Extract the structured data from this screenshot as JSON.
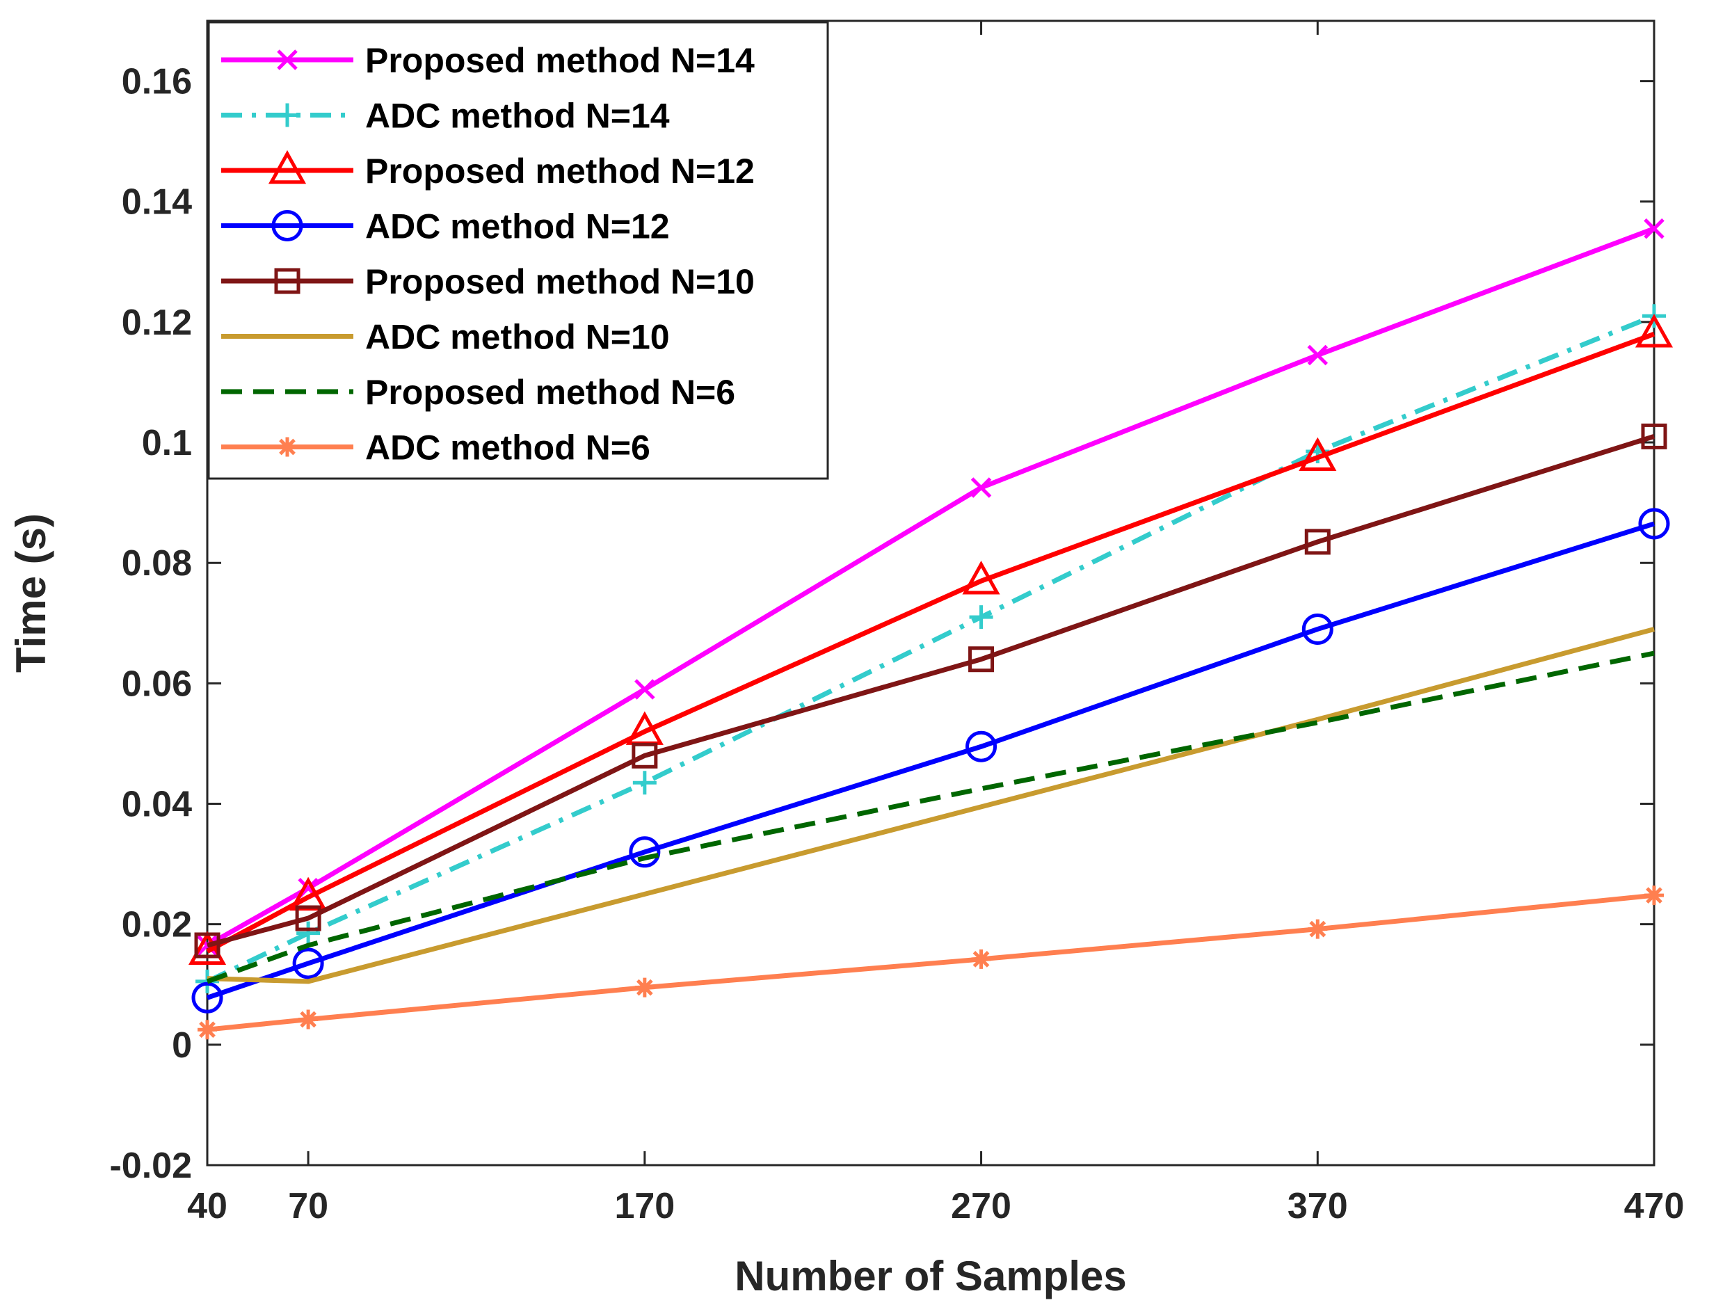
{
  "chart_data": {
    "type": "line",
    "title": "",
    "xlabel": "Number of Samples",
    "ylabel": "Time (s)",
    "xlim": [
      40,
      470
    ],
    "ylim": [
      -0.02,
      0.17
    ],
    "xticks": [
      40,
      70,
      170,
      270,
      370,
      470
    ],
    "xtick_labels": [
      "40",
      "70",
      "170",
      "270",
      "370",
      "470"
    ],
    "yticks": [
      -0.02,
      0,
      0.02,
      0.04,
      0.06,
      0.08,
      0.1,
      0.12,
      0.14,
      0.16
    ],
    "ytick_labels": [
      "-0.02",
      "0",
      "0.02",
      "0.04",
      "0.06",
      "0.08",
      "0.1",
      "0.12",
      "0.14",
      "0.16"
    ],
    "grid": false,
    "legend_position": "top-left",
    "x": [
      40,
      70,
      170,
      270,
      370,
      470
    ],
    "series": [
      {
        "name": "Proposed method N=14",
        "values": [
          0.0165,
          0.026,
          0.059,
          0.0925,
          0.1145,
          0.1355
        ],
        "color": "#ff00ff",
        "dash": "solid",
        "marker": "x"
      },
      {
        "name": "ADC method N=14",
        "values": [
          0.0105,
          0.0185,
          0.0435,
          0.071,
          0.0985,
          0.121
        ],
        "color": "#33cccc",
        "dash": "dashdot",
        "marker": "plus"
      },
      {
        "name": "Proposed method N=12",
        "values": [
          0.0155,
          0.0245,
          0.052,
          0.077,
          0.0975,
          0.118
        ],
        "color": "#ff0000",
        "dash": "solid",
        "marker": "triangle"
      },
      {
        "name": "ADC method N=12",
        "values": [
          0.0078,
          0.0135,
          0.032,
          0.0495,
          0.069,
          0.0865
        ],
        "color": "#0000ff",
        "dash": "solid",
        "marker": "circle"
      },
      {
        "name": "Proposed method N=10",
        "values": [
          0.0165,
          0.021,
          0.048,
          0.064,
          0.0835,
          0.101
        ],
        "color": "#7f1515",
        "dash": "solid",
        "marker": "square"
      },
      {
        "name": "ADC method N=10",
        "values": [
          0.011,
          0.0105,
          0.025,
          0.0395,
          0.054,
          0.069
        ],
        "color": "#c89b2f",
        "dash": "solid",
        "marker": "none"
      },
      {
        "name": "Proposed method N=6",
        "values": [
          0.0105,
          0.0165,
          0.031,
          0.0425,
          0.0535,
          0.065
        ],
        "color": "#006600",
        "dash": "dashed",
        "marker": "none"
      },
      {
        "name": "ADC method N=6",
        "values": [
          0.0025,
          0.0042,
          0.0095,
          0.0142,
          0.0192,
          0.0248
        ],
        "color": "#ff7f50",
        "dash": "solid",
        "marker": "asterisk"
      }
    ]
  }
}
